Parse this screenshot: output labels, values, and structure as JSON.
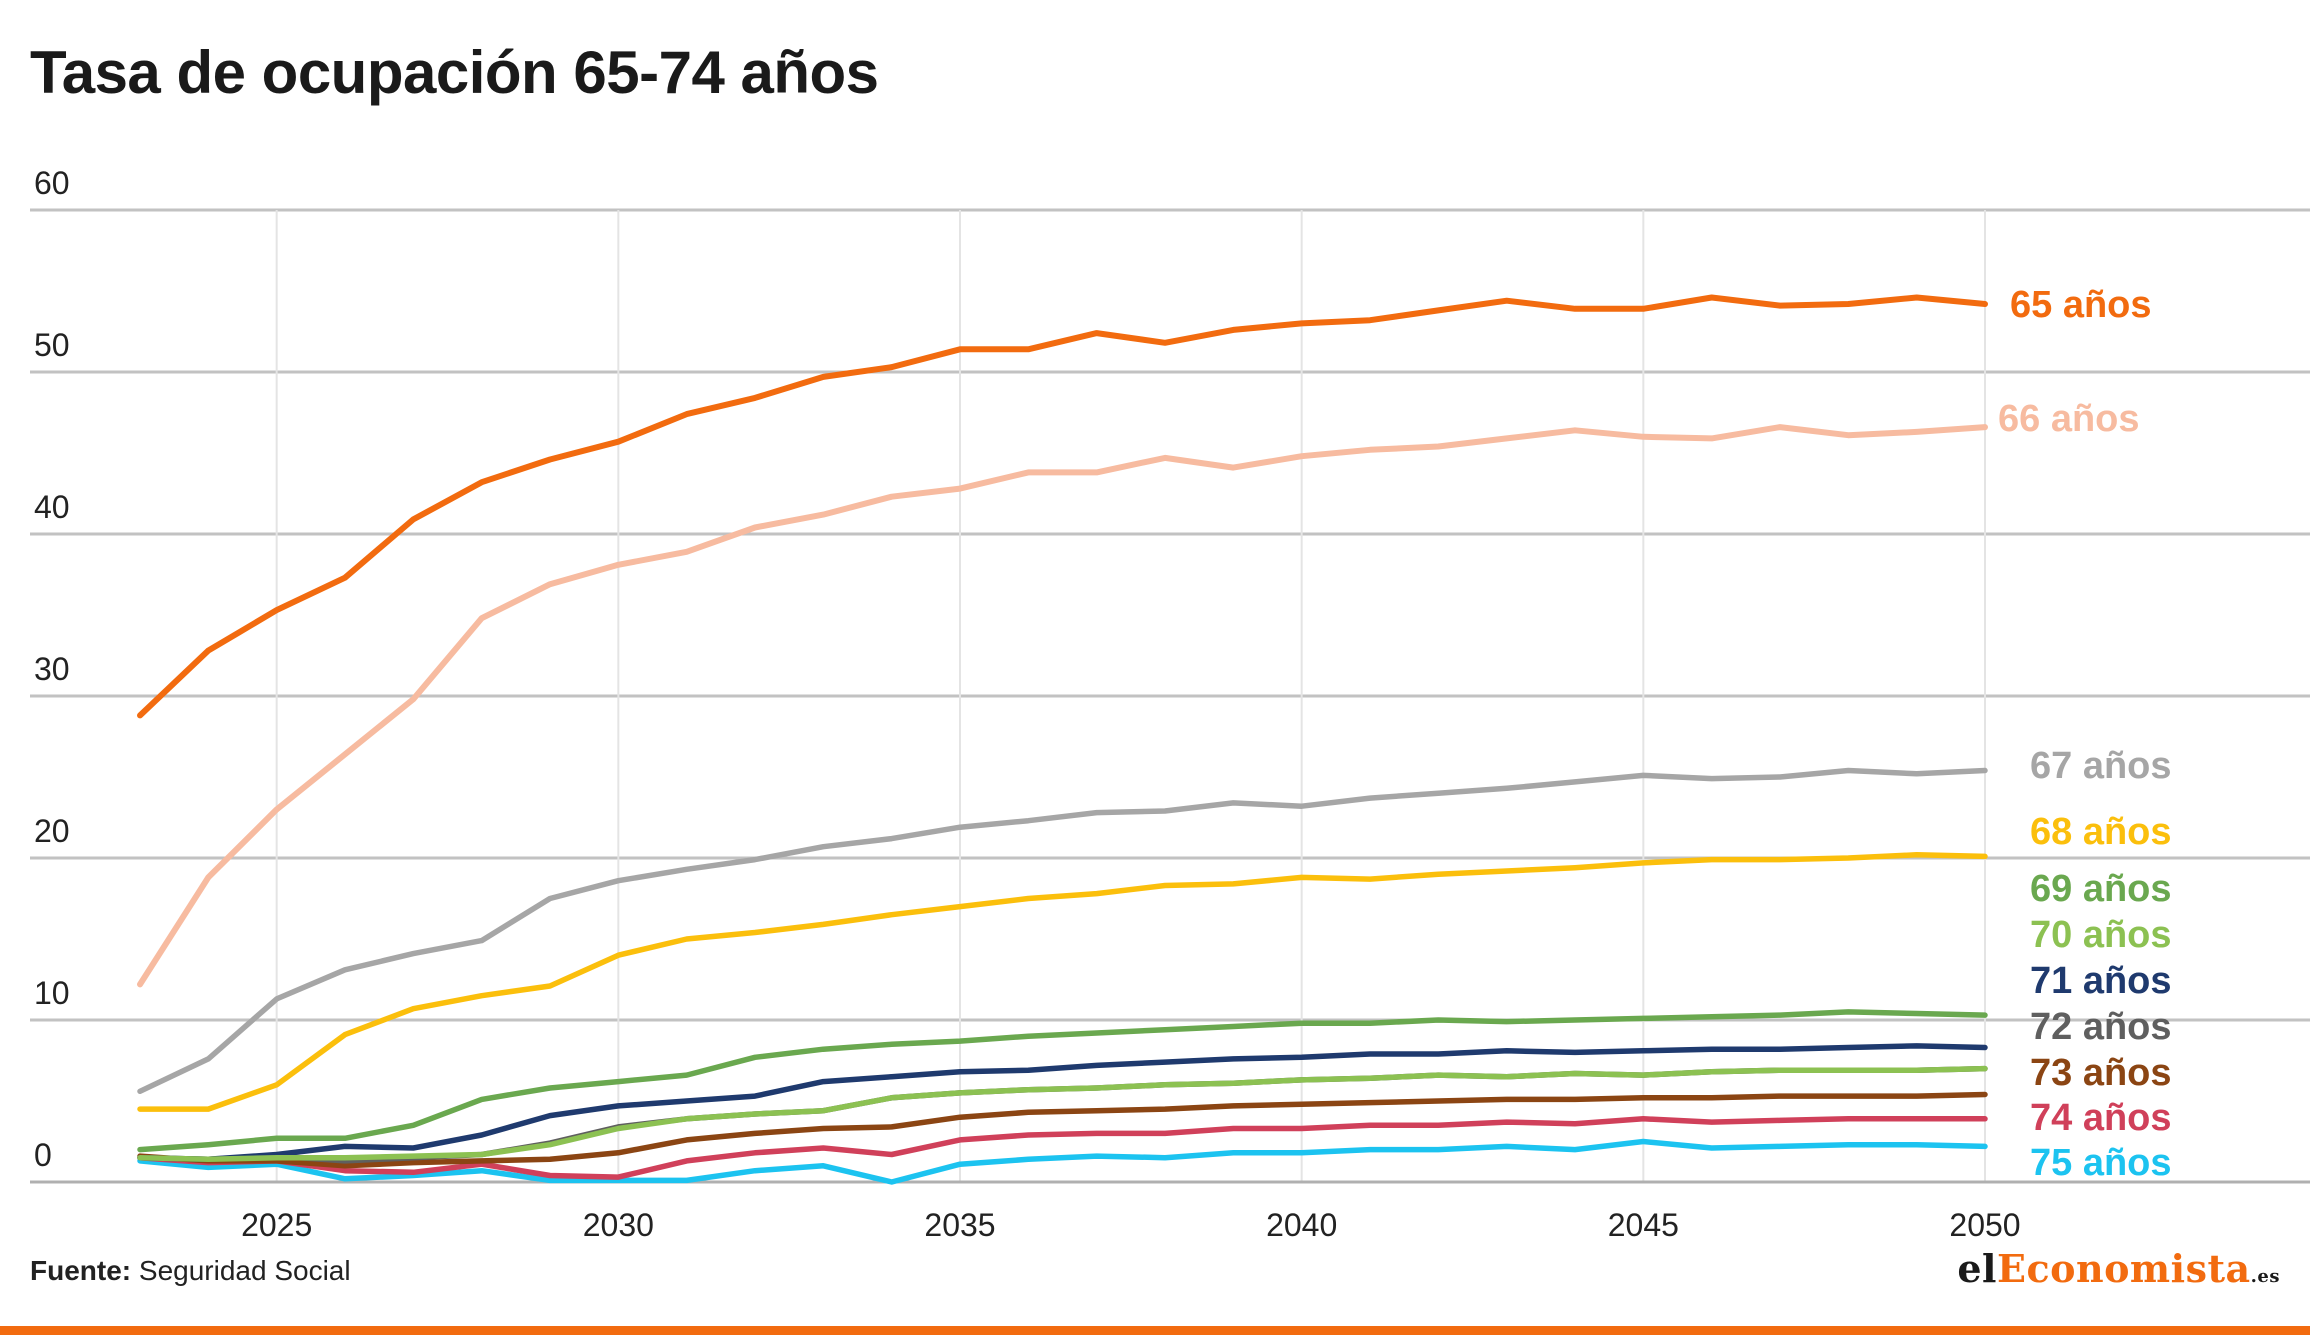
{
  "title": "Tasa de ocupación 65-74 años",
  "source_label": "Fuente:",
  "source_value": "Seguridad Social",
  "logo": {
    "part1": "el",
    "part2": "Economista",
    "part3": ".es",
    "accent_color": "#f26b0f"
  },
  "chart_data": {
    "type": "line",
    "title": "Tasa de ocupación 65-74 años",
    "xlabel": "",
    "ylabel": "",
    "x": [
      2023,
      2024,
      2025,
      2026,
      2027,
      2028,
      2029,
      2030,
      2031,
      2032,
      2033,
      2034,
      2035,
      2036,
      2037,
      2038,
      2039,
      2040,
      2041,
      2042,
      2043,
      2044,
      2045,
      2046,
      2047,
      2048,
      2049,
      2050
    ],
    "xlim": [
      2021,
      2054
    ],
    "ylim": [
      0,
      60
    ],
    "x_ticks": [
      "2025",
      "2030",
      "2035",
      "2040",
      "2045",
      "2050"
    ],
    "x_tick_values": [
      2025,
      2030,
      2035,
      2040,
      2045,
      2050
    ],
    "y_ticks": [
      "0",
      "10",
      "20",
      "30",
      "40",
      "50",
      "60"
    ],
    "y_tick_values": [
      0,
      10,
      20,
      30,
      40,
      50,
      60
    ],
    "grid": true,
    "legend": "right (end labels)",
    "series": [
      {
        "name": "65 años",
        "color": "#f26b0f",
        "values": [
          28.8,
          32.8,
          35.3,
          37.3,
          40.9,
          43.2,
          44.6,
          45.7,
          47.4,
          48.4,
          49.7,
          50.3,
          51.4,
          51.4,
          52.4,
          51.8,
          52.6,
          53.0,
          53.2,
          53.8,
          54.4,
          53.9,
          53.9,
          54.6,
          54.1,
          54.2,
          54.6,
          54.2
        ]
      },
      {
        "name": "66 años",
        "color": "#f7bba0",
        "values": [
          12.2,
          18.8,
          23.0,
          26.4,
          29.8,
          34.8,
          36.9,
          38.1,
          38.9,
          40.4,
          41.2,
          42.3,
          42.8,
          43.8,
          43.8,
          44.7,
          44.1,
          44.8,
          45.2,
          45.4,
          45.9,
          46.4,
          46.0,
          45.9,
          46.6,
          46.1,
          46.3,
          46.6
        ]
      },
      {
        "name": "67 años",
        "color": "#a6a6a6",
        "values": [
          5.6,
          7.6,
          11.3,
          13.1,
          14.1,
          14.9,
          17.5,
          18.6,
          19.3,
          19.9,
          20.7,
          21.2,
          21.9,
          22.3,
          22.8,
          22.9,
          23.4,
          23.2,
          23.7,
          24.0,
          24.3,
          24.7,
          25.1,
          24.9,
          25.0,
          25.4,
          25.2,
          25.4
        ]
      },
      {
        "name": "68 años",
        "color": "#fbbf0c",
        "values": [
          4.5,
          4.5,
          6.0,
          9.1,
          10.7,
          11.5,
          12.1,
          14.0,
          15.0,
          15.4,
          15.9,
          16.5,
          17.0,
          17.5,
          17.8,
          18.3,
          18.4,
          18.8,
          18.7,
          19.0,
          19.2,
          19.4,
          19.7,
          19.9,
          19.9,
          20.0,
          20.2,
          20.1
        ]
      },
      {
        "name": "69 años",
        "color": "#6aa84f",
        "values": [
          2.0,
          2.3,
          2.7,
          2.7,
          3.5,
          5.1,
          5.8,
          6.2,
          6.6,
          7.7,
          8.2,
          8.5,
          8.7,
          9.0,
          9.2,
          9.4,
          9.6,
          9.8,
          9.8,
          10.0,
          9.9,
          10.0,
          10.1,
          10.2,
          10.3,
          10.5,
          10.4,
          10.3
        ]
      },
      {
        "name": "70 años",
        "color": "#8cc152",
        "values": [
          1.5,
          1.4,
          1.5,
          1.5,
          1.6,
          1.7,
          2.3,
          3.3,
          3.9,
          4.2,
          4.4,
          5.2,
          5.5,
          5.7,
          5.8,
          6.0,
          6.1,
          6.3,
          6.4,
          6.6,
          6.5,
          6.7,
          6.6,
          6.8,
          6.9,
          6.9,
          6.9,
          7.0
        ]
      },
      {
        "name": "71 años",
        "color": "#1f3a6e",
        "values": [
          1.5,
          1.4,
          1.7,
          2.2,
          2.1,
          2.9,
          4.1,
          4.7,
          5.0,
          5.3,
          6.2,
          6.5,
          6.8,
          6.9,
          7.2,
          7.4,
          7.6,
          7.7,
          7.9,
          7.9,
          8.1,
          8.0,
          8.1,
          8.2,
          8.2,
          8.3,
          8.4,
          8.3
        ]
      },
      {
        "name": "72 años",
        "color": "#5f5f5f",
        "values": [
          1.5,
          1.4,
          1.6,
          1.3,
          1.5,
          1.7,
          2.4,
          3.4,
          3.9,
          4.2,
          4.4,
          5.2,
          5.5,
          5.7,
          5.8,
          6.0,
          6.1,
          6.3,
          6.4,
          6.6,
          6.5,
          6.7,
          6.6,
          6.8,
          6.9,
          6.9,
          6.9,
          7.0
        ]
      },
      {
        "name": "73 años",
        "color": "#8b4513",
        "values": [
          1.6,
          1.3,
          1.3,
          1.0,
          1.2,
          1.3,
          1.4,
          1.8,
          2.6,
          3.0,
          3.3,
          3.4,
          4.0,
          4.3,
          4.4,
          4.5,
          4.7,
          4.8,
          4.9,
          5.0,
          5.1,
          5.1,
          5.2,
          5.2,
          5.3,
          5.3,
          5.3,
          5.4
        ]
      },
      {
        "name": "74 años",
        "color": "#d0405a",
        "values": [
          1.5,
          1.2,
          1.3,
          0.7,
          0.6,
          1.1,
          0.4,
          0.3,
          1.3,
          1.8,
          2.1,
          1.7,
          2.6,
          2.9,
          3.0,
          3.0,
          3.3,
          3.3,
          3.5,
          3.5,
          3.7,
          3.6,
          3.9,
          3.7,
          3.8,
          3.9,
          3.9,
          3.9
        ]
      },
      {
        "name": "75 años",
        "color": "#1cc3f0",
        "values": [
          1.3,
          0.9,
          1.1,
          0.2,
          0.4,
          0.7,
          0.1,
          0.1,
          0.1,
          0.7,
          1.0,
          0.0,
          1.1,
          1.4,
          1.6,
          1.5,
          1.8,
          1.8,
          2.0,
          2.0,
          2.2,
          2.0,
          2.5,
          2.1,
          2.2,
          2.3,
          2.3,
          2.2
        ]
      }
    ]
  }
}
